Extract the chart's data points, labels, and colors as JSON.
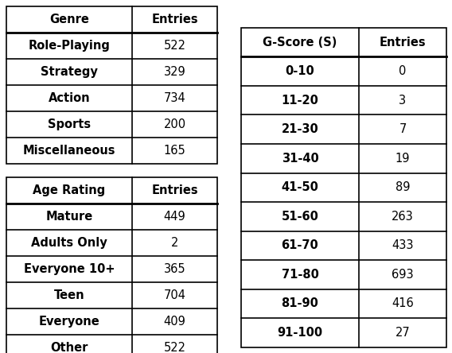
{
  "genre_headers": [
    "Genre",
    "Entries"
  ],
  "genre_rows": [
    [
      "Role-Playing",
      "522"
    ],
    [
      "Strategy",
      "329"
    ],
    [
      "Action",
      "734"
    ],
    [
      "Sports",
      "200"
    ],
    [
      "Miscellaneous",
      "165"
    ]
  ],
  "age_headers": [
    "Age Rating",
    "Entries"
  ],
  "age_rows": [
    [
      "Mature",
      "449"
    ],
    [
      "Adults Only",
      "2"
    ],
    [
      "Everyone 10+",
      "365"
    ],
    [
      "Teen",
      "704"
    ],
    [
      "Everyone",
      "409"
    ],
    [
      "Other",
      "522"
    ]
  ],
  "gscore_headers": [
    "G-Score (S)",
    "Entries"
  ],
  "gscore_rows": [
    [
      "0-10",
      "0"
    ],
    [
      "11-20",
      "3"
    ],
    [
      "21-30",
      "7"
    ],
    [
      "31-40",
      "19"
    ],
    [
      "41-50",
      "89"
    ],
    [
      "51-60",
      "263"
    ],
    [
      "61-70",
      "433"
    ],
    [
      "71-80",
      "693"
    ],
    [
      "81-90",
      "416"
    ],
    [
      "91-100",
      "27"
    ]
  ],
  "bg_color": "#ffffff",
  "fontsize": 10.5,
  "header_fontsize": 10.5
}
